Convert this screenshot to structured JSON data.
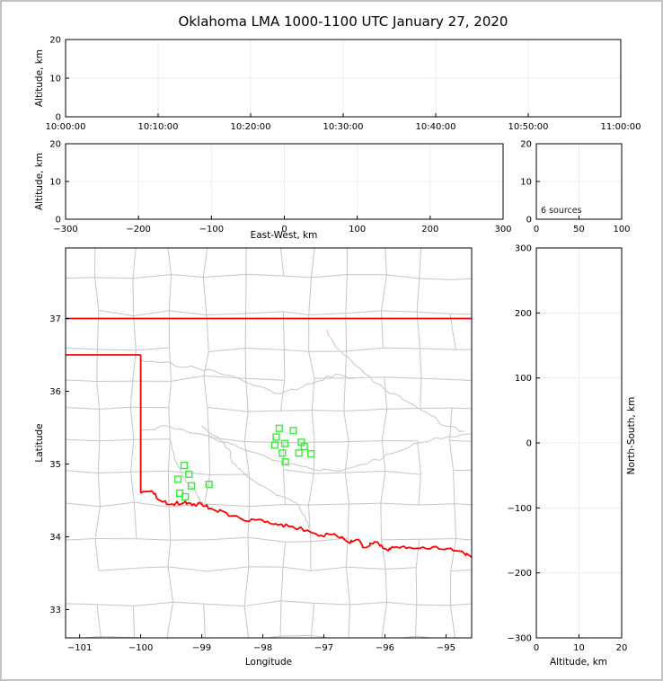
{
  "title": "Oklahoma LMA 1000-1100 UTC January 27, 2020",
  "colors": {
    "state_border": "#ff0000",
    "county_lines": "#c6c6c6",
    "river_lines": "#c6c6c6",
    "station_marker": "#35ee35",
    "gridline": "#ececec",
    "background": "#ffffff",
    "frame": "#c3c3c3",
    "text": "#000000"
  },
  "chart_data": {
    "type": "scatter",
    "panels": {
      "time": {
        "ylabel": "Altitude, km",
        "ylim": [
          0,
          20
        ],
        "yticks": [
          0,
          10,
          20
        ],
        "xtick_labels": [
          "10:00:00",
          "10:10:00",
          "10:20:00",
          "10:30:00",
          "10:40:00",
          "10:50:00",
          "11:00:00"
        ],
        "points": []
      },
      "ew": {
        "xlabel": "East-West, km",
        "ylabel": "Altitude, km",
        "xlim": [
          -300,
          300
        ],
        "xticks": [
          -300,
          -200,
          -100,
          0,
          100,
          200,
          300
        ],
        "ylim": [
          0,
          20
        ],
        "yticks": [
          0,
          10,
          20
        ],
        "points": []
      },
      "hist": {
        "annotation": "6 sources",
        "xlim": [
          0,
          100
        ],
        "xticks": [
          0,
          50,
          100
        ],
        "ylim": [
          0,
          20
        ],
        "yticks": [
          0,
          10,
          20
        ],
        "points": []
      },
      "map": {
        "xlabel": "Longitude",
        "ylabel": "Latitude",
        "xlim": [
          -101.23,
          -94.58
        ],
        "xticks": [
          -101,
          -100,
          -99,
          -98,
          -97,
          -96,
          -95
        ],
        "ylim": [
          32.61,
          37.97
        ],
        "yticks": [
          33,
          34,
          35,
          36,
          37
        ],
        "stations": [
          {
            "lon": -99.29,
            "lat": 34.98
          },
          {
            "lon": -99.21,
            "lat": 34.86
          },
          {
            "lon": -99.39,
            "lat": 34.79
          },
          {
            "lon": -99.17,
            "lat": 34.7
          },
          {
            "lon": -98.88,
            "lat": 34.72
          },
          {
            "lon": -99.36,
            "lat": 34.6
          },
          {
            "lon": -99.27,
            "lat": 34.55
          },
          {
            "lon": -97.73,
            "lat": 35.49
          },
          {
            "lon": -97.5,
            "lat": 35.46
          },
          {
            "lon": -97.78,
            "lat": 35.37
          },
          {
            "lon": -97.8,
            "lat": 35.26
          },
          {
            "lon": -97.64,
            "lat": 35.28
          },
          {
            "lon": -97.37,
            "lat": 35.3
          },
          {
            "lon": -97.32,
            "lat": 35.24
          },
          {
            "lon": -97.68,
            "lat": 35.15
          },
          {
            "lon": -97.41,
            "lat": 35.15
          },
          {
            "lon": -97.21,
            "lat": 35.14
          },
          {
            "lon": -97.63,
            "lat": 35.03
          }
        ],
        "state_border": {
          "segments": [
            [
              [
                -101.23,
                37.0
              ],
              [
                -94.58,
                37.0
              ]
            ],
            [
              [
                -101.23,
                36.5
              ],
              [
                -100.0,
                36.5
              ]
            ],
            [
              [
                -100.0,
                36.5
              ],
              [
                -100.0,
                34.6
              ]
            ]
          ],
          "red_river": [
            [
              -100.0,
              34.6
            ],
            [
              -99.82,
              34.63
            ],
            [
              -99.69,
              34.5
            ],
            [
              -99.48,
              34.45
            ],
            [
              -99.29,
              34.47
            ],
            [
              -99.16,
              34.43
            ],
            [
              -99.01,
              34.46
            ],
            [
              -98.85,
              34.39
            ],
            [
              -98.6,
              34.33
            ],
            [
              -98.3,
              34.22
            ],
            [
              -98.01,
              34.23
            ],
            [
              -97.79,
              34.18
            ],
            [
              -97.57,
              34.14
            ],
            [
              -97.27,
              34.09
            ],
            [
              -97.05,
              34.02
            ],
            [
              -96.83,
              34.04
            ],
            [
              -96.61,
              33.93
            ],
            [
              -96.47,
              33.96
            ],
            [
              -96.32,
              33.85
            ],
            [
              -96.17,
              33.93
            ],
            [
              -95.98,
              33.83
            ],
            [
              -95.86,
              33.85
            ],
            [
              -95.69,
              33.87
            ],
            [
              -95.48,
              33.84
            ],
            [
              -95.22,
              33.86
            ],
            [
              -94.92,
              33.84
            ],
            [
              -94.7,
              33.77
            ],
            [
              -94.58,
              33.72
            ]
          ]
        },
        "rivers": [
          [
            [
              -100.02,
              36.44
            ],
            [
              -99.62,
              36.4
            ],
            [
              -99.25,
              36.33
            ],
            [
              -98.9,
              36.3
            ],
            [
              -98.55,
              36.22
            ],
            [
              -98.15,
              36.08
            ],
            [
              -97.8,
              35.97
            ],
            [
              -97.45,
              36.02
            ],
            [
              -97.1,
              36.14
            ],
            [
              -96.8,
              36.24
            ],
            [
              -96.5,
              36.18
            ]
          ],
          [
            [
              -100.0,
              35.47
            ],
            [
              -99.55,
              35.52
            ],
            [
              -99.1,
              35.42
            ],
            [
              -98.6,
              35.3
            ],
            [
              -98.1,
              35.15
            ],
            [
              -97.6,
              35.0
            ],
            [
              -97.2,
              34.93
            ],
            [
              -96.75,
              34.9
            ],
            [
              -96.3,
              35.0
            ],
            [
              -95.85,
              35.15
            ],
            [
              -95.4,
              35.3
            ],
            [
              -94.95,
              35.38
            ],
            [
              -94.58,
              35.42
            ]
          ],
          [
            [
              -96.95,
              36.85
            ],
            [
              -96.8,
              36.6
            ],
            [
              -96.55,
              36.42
            ],
            [
              -96.25,
              36.2
            ],
            [
              -96.0,
              36.02
            ],
            [
              -95.7,
              35.88
            ],
            [
              -95.35,
              35.72
            ],
            [
              -95.0,
              35.52
            ],
            [
              -94.7,
              35.45
            ]
          ],
          [
            [
              -99.0,
              35.52
            ],
            [
              -98.75,
              35.38
            ],
            [
              -98.55,
              35.2
            ],
            [
              -98.5,
              35.02
            ],
            [
              -98.3,
              34.86
            ],
            [
              -98.0,
              34.7
            ],
            [
              -97.7,
              34.56
            ],
            [
              -97.45,
              34.47
            ],
            [
              -97.3,
              34.28
            ],
            [
              -97.25,
              34.12
            ]
          ],
          [
            [
              -99.52,
              35.32
            ],
            [
              -99.45,
              35.08
            ],
            [
              -99.33,
              34.88
            ],
            [
              -99.22,
              34.72
            ],
            [
              -99.08,
              34.58
            ],
            [
              -98.98,
              34.47
            ]
          ]
        ]
      },
      "ns": {
        "xlabel": "Altitude, km",
        "ylabel": "North-South, km",
        "xlim": [
          0,
          20
        ],
        "xticks": [
          0,
          10,
          20
        ],
        "ylim": [
          -300,
          300
        ],
        "yticks": [
          -300,
          -200,
          -100,
          0,
          100,
          200,
          300
        ],
        "points": []
      }
    }
  }
}
